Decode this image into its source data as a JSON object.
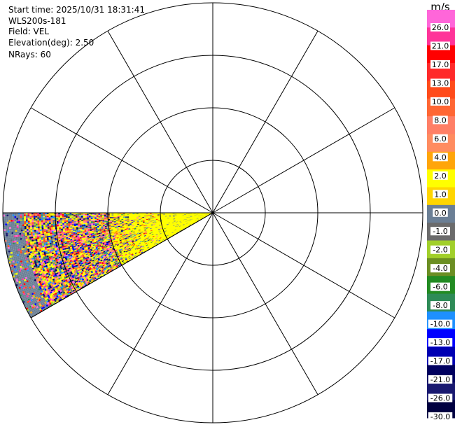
{
  "header": {
    "start_time": "Start time: 2025/10/31 18:31:41",
    "instrument": "WLS200s-181",
    "field": "Field: VEL",
    "elevation": "Elevation(deg): 2.50",
    "nrays": "NRays: 60"
  },
  "chart_data": {
    "type": "ppi",
    "field": "VEL",
    "unit": "m/s",
    "elevation_deg": 2.5,
    "nrays": 60,
    "rings": 4,
    "spokes_deg": [
      0,
      30,
      60,
      90,
      120,
      150,
      180,
      210,
      240,
      270,
      300,
      330
    ],
    "sector": {
      "azimuth_start_deg": 240,
      "azimuth_end_deg": 270
    },
    "range_bands": [
      {
        "from_ring": 0.0,
        "to_ring": 1.0,
        "dominant": "2.0 to 4.0",
        "note": "mostly yellow, some 0.0 to 1.0 gray"
      },
      {
        "from_ring": 1.0,
        "to_ring": 2.0,
        "dominant": "2.0 to 4.0",
        "note": "yellow with scattered noise"
      },
      {
        "from_ring": 2.0,
        "to_ring": 3.6,
        "dominant": "noise",
        "note": "mixed speckle of all colors"
      },
      {
        "from_ring": 3.6,
        "to_ring": 4.0,
        "dominant": "0.0",
        "note": "gray band at edge"
      }
    ],
    "colorbar": {
      "label": "m/s",
      "ticks": [
        "26.0",
        "21.0",
        "17.0",
        "13.0",
        "10.0",
        "8.0",
        "6.0",
        "4.0",
        "2.0",
        "1.0",
        "0.0",
        "-1.0",
        "-2.0",
        "-4.0",
        "-6.0",
        "-8.0",
        "-10.0",
        "-13.0",
        "-17.0",
        "-21.0",
        "-26.0",
        "-30.0"
      ],
      "colors": [
        "#ff66d9",
        "#ff3399",
        "#ff0000",
        "#ff2a2a",
        "#ff4b1a",
        "#ff6633",
        "#ff7f66",
        "#ff8c60",
        "#ffa50a",
        "#ffff00",
        "#ffd500",
        "#6b7f95",
        "#6b6b6b",
        "#a1cf2a",
        "#6b8e23",
        "#228b22",
        "#2e8b57",
        "#1e90ff",
        "#0000ff",
        "#0000b3",
        "#00005f",
        "#191970",
        "#000040"
      ]
    }
  }
}
